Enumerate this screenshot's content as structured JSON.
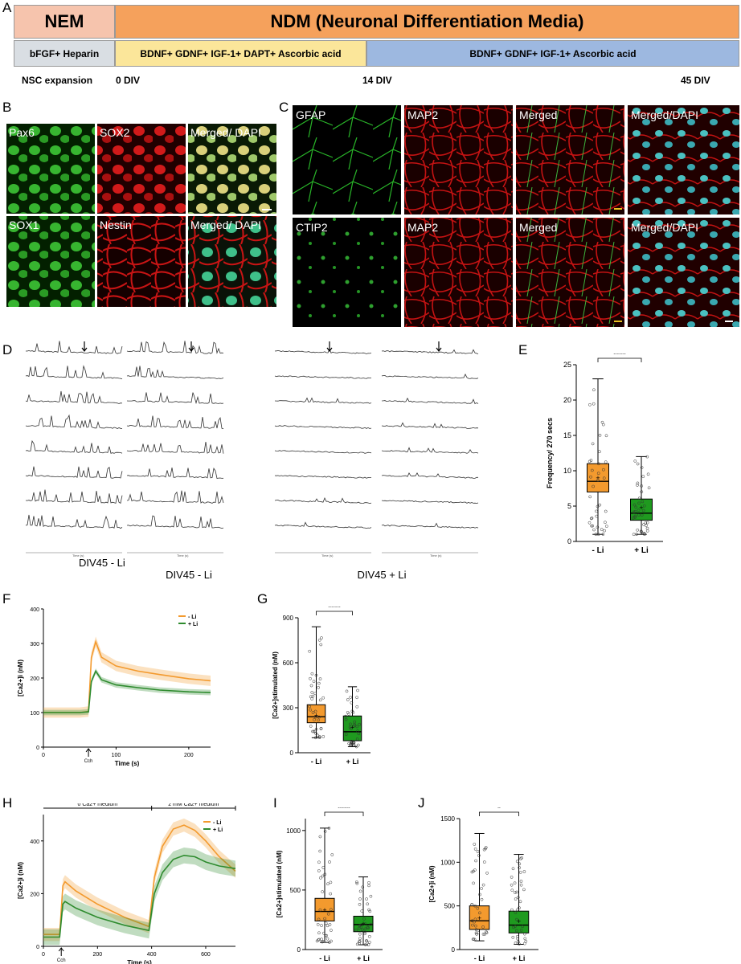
{
  "panel_letters": {
    "A": "A",
    "B": "B",
    "C": "C",
    "D": "D",
    "E": "E",
    "F": "F",
    "G": "G",
    "H": "H",
    "I": "I",
    "J": "J"
  },
  "protocol": {
    "nem": "NEM",
    "ndm": "NDM (Neuronal Differentiation Media)",
    "seg1": "bFGF+ Heparin",
    "seg2": "BDNF+ GDNF+ IGF-1+ DAPT+ Ascorbic acid",
    "seg3": "BDNF+ GDNF+ IGF-1+ Ascorbic acid",
    "t0": "NSC expansion",
    "t1": "0 DIV",
    "t2": "14 DIV",
    "t3": "45 DIV",
    "colors": {
      "nem": "#f6c4ad",
      "ndm": "#f5a15c",
      "seg1": "#d9dee3",
      "seg2": "#fbe69a",
      "seg3": "#9db8e0"
    }
  },
  "images_b": [
    "Pax6",
    "SOX2",
    "Merged/ DAPI",
    "SOX1",
    "Nestin",
    "Merged/ DAPI"
  ],
  "images_c": [
    "GFAP",
    "MAP2",
    "Merged",
    "Merged/DAPI",
    "CTIP2",
    "MAP2",
    "Merged",
    "Merged/DAPI"
  ],
  "traces": {
    "left_label": "DIV45 - Li",
    "right_label": "DIV45 + Li",
    "axis_title": "Time (s)"
  },
  "colors": {
    "orange": "#f39a2e",
    "green": "#2e8b2e",
    "orange_fill": "#f7b15a",
    "green_fill": "#1f9a1f"
  },
  "chart_data": [
    {
      "panel": "E",
      "type": "box",
      "ylabel": "Frequency/ 270 secs",
      "ylim": [
        0,
        25
      ],
      "yticks": [
        0,
        5,
        10,
        15,
        20,
        25
      ],
      "categories": [
        "- Li",
        "+ Li"
      ],
      "significance": "****",
      "boxes": [
        {
          "category": "- Li",
          "min": 1,
          "q1": 7,
          "median": 8.5,
          "q3": 11,
          "max": 23,
          "mean": 9
        },
        {
          "category": "+ Li",
          "min": 1,
          "q1": 3,
          "median": 4,
          "q3": 6,
          "max": 12,
          "mean": 4.8
        }
      ]
    },
    {
      "panel": "F",
      "type": "line",
      "ylabel": "[Ca2+]i (nM)",
      "xlabel": "Time (s)",
      "xlim": [
        0,
        230
      ],
      "ylim": [
        0,
        400
      ],
      "xticks": [
        0,
        100,
        200
      ],
      "yticks": [
        0,
        100,
        200,
        300,
        400
      ],
      "annotation": "Cch",
      "series": [
        {
          "name": "- Li",
          "x": [
            0,
            50,
            62,
            66,
            72,
            80,
            100,
            130,
            160,
            200,
            230
          ],
          "y": [
            100,
            100,
            103,
            260,
            305,
            260,
            235,
            220,
            210,
            198,
            192
          ]
        },
        {
          "name": "+ Li",
          "x": [
            0,
            50,
            62,
            66,
            72,
            80,
            100,
            130,
            160,
            200,
            230
          ],
          "y": [
            100,
            100,
            102,
            190,
            220,
            195,
            180,
            172,
            165,
            160,
            158
          ]
        }
      ]
    },
    {
      "panel": "G",
      "type": "box",
      "ylabel": "[Ca2+]stimulated (nM)",
      "ylim": [
        0,
        900
      ],
      "yticks": [
        0,
        300,
        600,
        900
      ],
      "categories": [
        "- Li",
        "+ Li"
      ],
      "significance": "****",
      "boxes": [
        {
          "category": "- Li",
          "min": 100,
          "q1": 200,
          "median": 240,
          "q3": 320,
          "max": 840,
          "mean": 250
        },
        {
          "category": "+ Li",
          "min": 40,
          "q1": 80,
          "median": 140,
          "q3": 245,
          "max": 440,
          "mean": 170
        }
      ]
    },
    {
      "panel": "H",
      "type": "line",
      "ylabel": "[Ca2+]i (nM)",
      "xlabel": "Time (s)",
      "xlim": [
        0,
        710
      ],
      "ylim": [
        0,
        500
      ],
      "xticks": [
        0,
        200,
        400,
        600
      ],
      "yticks": [
        0,
        200,
        400
      ],
      "annotation": "Cch",
      "regions": [
        "0 Ca2+ medium",
        "2 mM Ca2+ medium"
      ],
      "series": [
        {
          "name": "- Li",
          "x": [
            0,
            60,
            72,
            80,
            120,
            200,
            300,
            390,
            410,
            440,
            480,
            520,
            560,
            600,
            650,
            710
          ],
          "y": [
            45,
            45,
            230,
            245,
            210,
            160,
            110,
            75,
            260,
            380,
            445,
            460,
            440,
            400,
            340,
            285
          ]
        },
        {
          "name": "+ Li",
          "x": [
            0,
            60,
            72,
            80,
            120,
            200,
            300,
            390,
            410,
            440,
            480,
            520,
            560,
            600,
            650,
            710
          ],
          "y": [
            35,
            35,
            160,
            170,
            145,
            110,
            80,
            60,
            200,
            280,
            330,
            345,
            340,
            320,
            305,
            295
          ]
        }
      ]
    },
    {
      "panel": "I",
      "type": "box",
      "ylabel": "[Ca2+]stimulated (nM)",
      "ylim": [
        0,
        1100
      ],
      "yticks": [
        0,
        500,
        1000
      ],
      "categories": [
        "- Li",
        "+ Li"
      ],
      "significance": "****",
      "boxes": [
        {
          "category": "- Li",
          "min": 60,
          "q1": 240,
          "median": 320,
          "q3": 430,
          "max": 1020,
          "mean": 330
        },
        {
          "category": "+ Li",
          "min": 40,
          "q1": 150,
          "median": 210,
          "q3": 280,
          "max": 610,
          "mean": 215
        }
      ]
    },
    {
      "panel": "J",
      "type": "box",
      "ylabel": "[Ca2+]i (nM)",
      "ylim": [
        0,
        1500
      ],
      "yticks": [
        0,
        500,
        1000,
        1500
      ],
      "categories": [
        "- Li",
        "+ Li"
      ],
      "significance": "*",
      "boxes": [
        {
          "category": "- Li",
          "min": 100,
          "q1": 230,
          "median": 330,
          "q3": 500,
          "max": 1330,
          "mean": 360
        },
        {
          "category": "+ Li",
          "min": 60,
          "q1": 190,
          "median": 280,
          "q3": 440,
          "max": 1090,
          "mean": 320
        }
      ]
    }
  ]
}
